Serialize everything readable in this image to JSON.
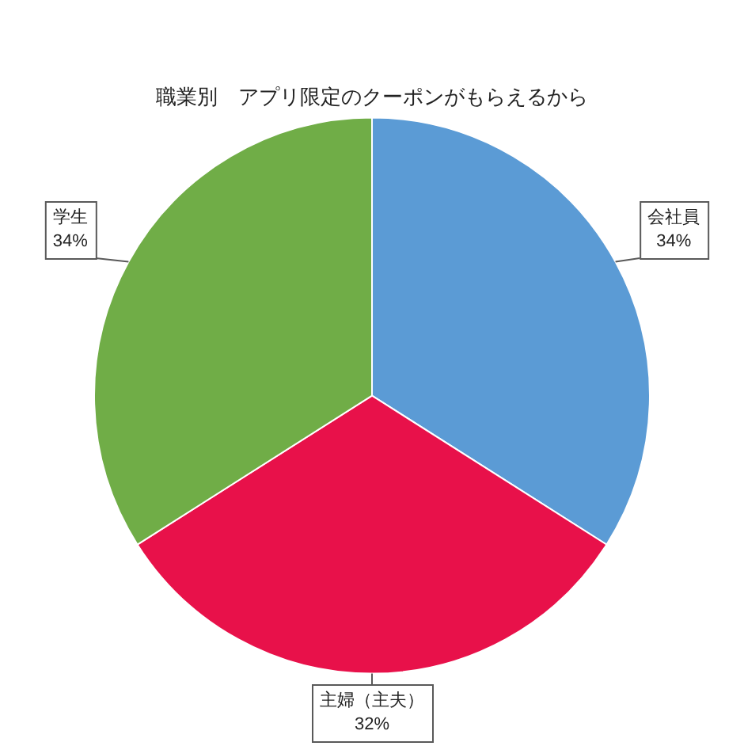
{
  "chart_data": {
    "type": "pie",
    "title": "職業別　アプリ限定のクーポンがもらえるから",
    "categories": [
      "会社員",
      "主婦（主夫）",
      "学生"
    ],
    "values": [
      34,
      32,
      34
    ],
    "value_labels": [
      "34%",
      "32%",
      "34%"
    ],
    "colors": [
      "#5b9bd5",
      "#e8114a",
      "#70ad47"
    ],
    "legend": false
  }
}
